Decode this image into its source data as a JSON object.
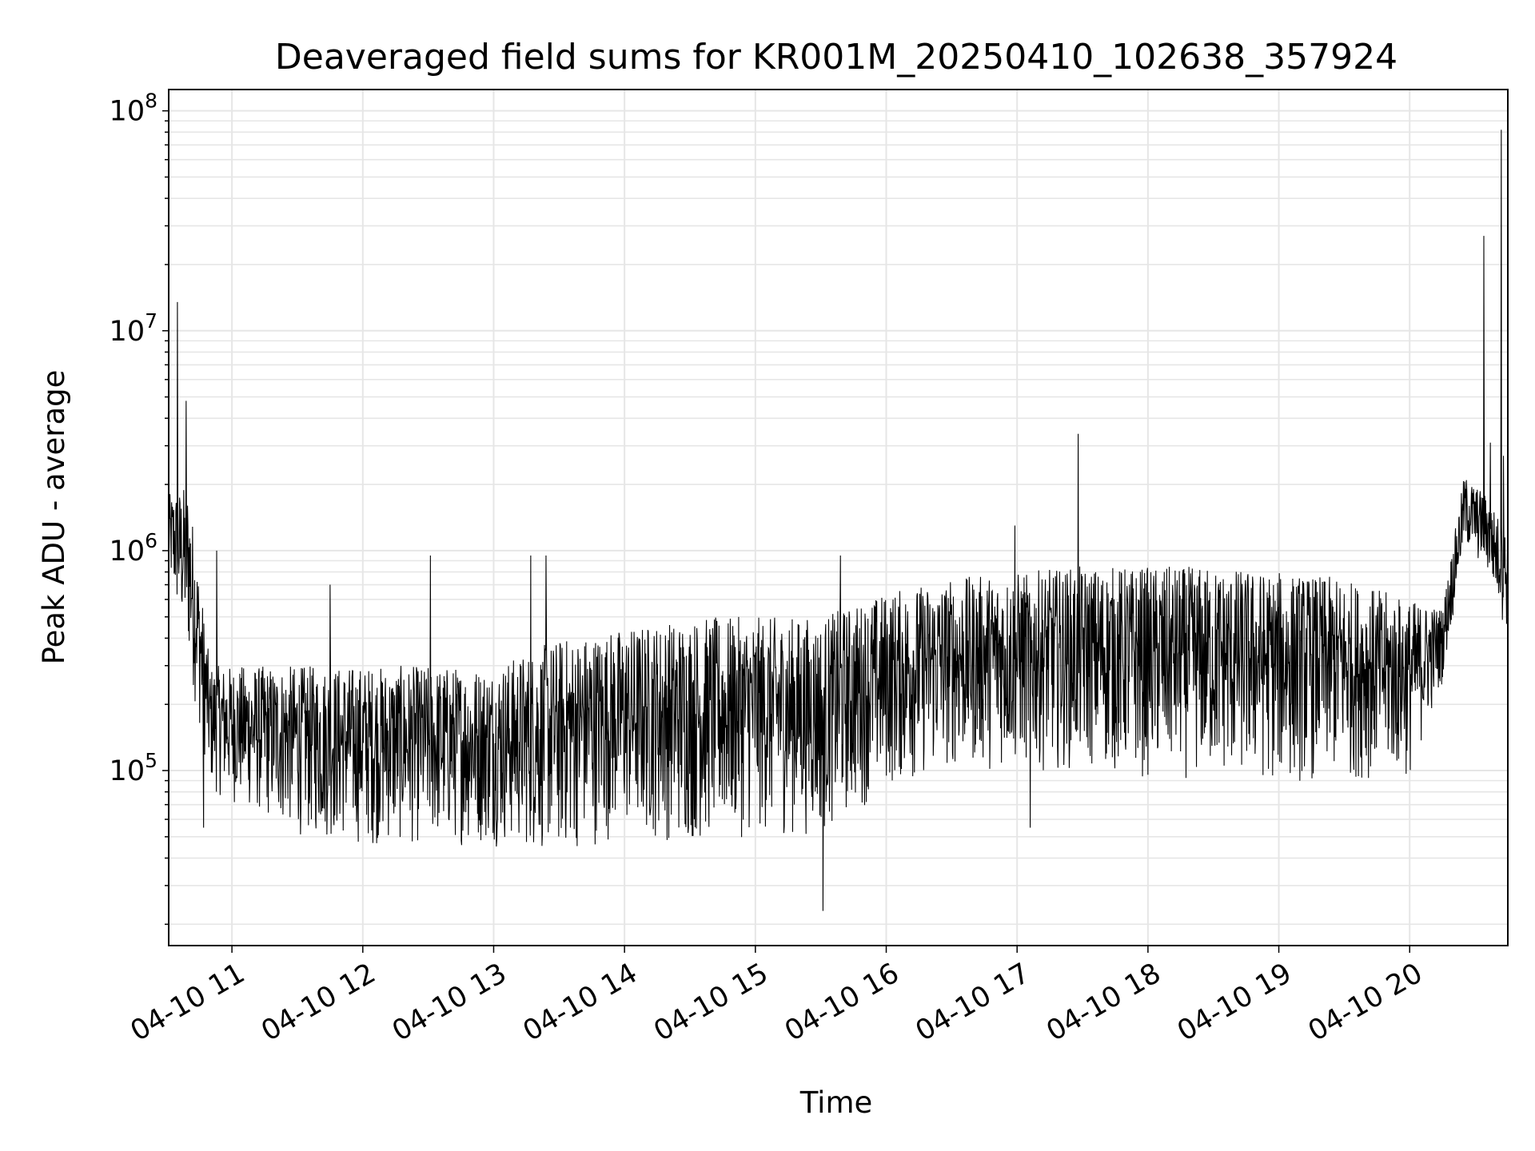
{
  "chart_data": {
    "type": "line",
    "title": "Deaveraged field sums for KR001M_20250410_102638_357924",
    "xlabel": "Time",
    "ylabel": "Peak ADU - average",
    "yscale": "log",
    "ylim": [
      16000,
      125000000
    ],
    "xlim": [
      "2025-04-10 10:31",
      "2025-04-10 20:45"
    ],
    "grid": true,
    "line_color": "#000000",
    "grid_color": "#e6e6e6",
    "x_ticks": [
      {
        "label": "04-10 11",
        "value": "2025-04-10 11:00"
      },
      {
        "label": "04-10 12",
        "value": "2025-04-10 12:00"
      },
      {
        "label": "04-10 13",
        "value": "2025-04-10 13:00"
      },
      {
        "label": "04-10 14",
        "value": "2025-04-10 14:00"
      },
      {
        "label": "04-10 15",
        "value": "2025-04-10 15:00"
      },
      {
        "label": "04-10 16",
        "value": "2025-04-10 16:00"
      },
      {
        "label": "04-10 17",
        "value": "2025-04-10 17:00"
      },
      {
        "label": "04-10 18",
        "value": "2025-04-10 18:00"
      },
      {
        "label": "04-10 19",
        "value": "2025-04-10 19:00"
      },
      {
        "label": "04-10 20",
        "value": "2025-04-10 20:00"
      }
    ],
    "y_ticks": [
      {
        "base": "10",
        "exp": "5",
        "value": 100000
      },
      {
        "base": "10",
        "exp": "6",
        "value": 1000000
      },
      {
        "base": "10",
        "exp": "7",
        "value": 10000000
      },
      {
        "base": "10",
        "exp": "8",
        "value": 100000000
      }
    ],
    "envelope": [
      {
        "time": "2025-04-10 10:31",
        "low": 700000,
        "high": 1800000
      },
      {
        "time": "2025-04-10 10:40",
        "low": 300000,
        "high": 2000000
      },
      {
        "time": "2025-04-10 10:50",
        "low": 80000,
        "high": 300000
      },
      {
        "time": "2025-04-10 11:00",
        "low": 70000,
        "high": 300000
      },
      {
        "time": "2025-04-10 11:30",
        "low": 50000,
        "high": 300000
      },
      {
        "time": "2025-04-10 12:00",
        "low": 45000,
        "high": 300000
      },
      {
        "time": "2025-04-10 12:30",
        "low": 45000,
        "high": 300000
      },
      {
        "time": "2025-04-10 13:00",
        "low": 45000,
        "high": 300000
      },
      {
        "time": "2025-04-10 13:30",
        "low": 40000,
        "high": 400000
      },
      {
        "time": "2025-04-10 14:00",
        "low": 50000,
        "high": 450000
      },
      {
        "time": "2025-04-10 14:30",
        "low": 45000,
        "high": 500000
      },
      {
        "time": "2025-04-10 15:00",
        "low": 50000,
        "high": 500000
      },
      {
        "time": "2025-04-10 15:30",
        "low": 50000,
        "high": 500000
      },
      {
        "time": "2025-04-10 16:00",
        "low": 80000,
        "high": 650000
      },
      {
        "time": "2025-04-10 16:30",
        "low": 100000,
        "high": 750000
      },
      {
        "time": "2025-04-10 17:00",
        "low": 100000,
        "high": 800000
      },
      {
        "time": "2025-04-10 17:30",
        "low": 100000,
        "high": 850000
      },
      {
        "time": "2025-04-10 18:00",
        "low": 90000,
        "high": 850000
      },
      {
        "time": "2025-04-10 18:30",
        "low": 90000,
        "high": 850000
      },
      {
        "time": "2025-04-10 19:00",
        "low": 85000,
        "high": 800000
      },
      {
        "time": "2025-04-10 19:30",
        "low": 90000,
        "high": 750000
      },
      {
        "time": "2025-04-10 20:00",
        "low": 90000,
        "high": 600000
      },
      {
        "time": "2025-04-10 20:15",
        "low": 250000,
        "high": 550000
      },
      {
        "time": "2025-04-10 20:25",
        "low": 1000000,
        "high": 2200000
      },
      {
        "time": "2025-04-10 20:35",
        "low": 800000,
        "high": 1800000
      },
      {
        "time": "2025-04-10 20:45",
        "low": 400000,
        "high": 1200000
      }
    ],
    "spikes": [
      {
        "time": "2025-04-10 10:35",
        "value": 13500000
      },
      {
        "time": "2025-04-10 10:39",
        "value": 4800000
      },
      {
        "time": "2025-04-10 10:53",
        "value": 1000000
      },
      {
        "time": "2025-04-10 11:45",
        "value": 700000
      },
      {
        "time": "2025-04-10 12:31",
        "value": 950000
      },
      {
        "time": "2025-04-10 13:17",
        "value": 950000
      },
      {
        "time": "2025-04-10 13:24",
        "value": 950000
      },
      {
        "time": "2025-04-10 15:39",
        "value": 950000
      },
      {
        "time": "2025-04-10 16:59",
        "value": 1300000
      },
      {
        "time": "2025-04-10 17:28",
        "value": 3400000
      },
      {
        "time": "2025-04-10 15:31",
        "value": 23000
      },
      {
        "time": "2025-04-10 10:47",
        "value": 55000
      },
      {
        "time": "2025-04-10 17:06",
        "value": 55000
      },
      {
        "time": "2025-04-10 20:34",
        "value": 27000000
      },
      {
        "time": "2025-04-10 20:42",
        "value": 82000000
      },
      {
        "time": "2025-04-10 20:37",
        "value": 3100000
      },
      {
        "time": "2025-04-10 20:43",
        "value": 2700000
      }
    ]
  }
}
